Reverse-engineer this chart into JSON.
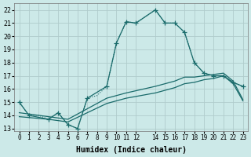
{
  "xlabel": "Humidex (Indice chaleur)",
  "background_color": "#cce9e8",
  "grid_color": "#b0cccc",
  "line_color": "#1a6b6b",
  "xlim": [
    -0.5,
    23.5
  ],
  "ylim": [
    12.8,
    22.5
  ],
  "xticks": [
    0,
    1,
    2,
    3,
    4,
    5,
    6,
    7,
    8,
    9,
    10,
    11,
    12,
    14,
    15,
    16,
    17,
    18,
    19,
    20,
    21,
    22,
    23
  ],
  "yticks": [
    13,
    14,
    15,
    16,
    17,
    18,
    19,
    20,
    21,
    22
  ],
  "line_dotted_x": [
    0,
    1,
    2,
    3,
    4,
    5,
    6,
    7,
    8,
    9,
    10,
    11,
    12,
    14,
    15,
    16,
    17,
    18,
    19,
    20,
    21,
    22,
    23
  ],
  "line_dotted_y": [
    15,
    14,
    14,
    13.7,
    14.2,
    13.3,
    13.0,
    15.3,
    15.5,
    16.2,
    19.5,
    21.1,
    21.0,
    22.0,
    21.0,
    21.0,
    20.3,
    18.0,
    17.2,
    17.0,
    17.0,
    16.5,
    16.2
  ],
  "line_solid_marker_x": [
    0,
    1,
    3,
    4,
    5,
    6,
    7,
    9,
    10,
    11,
    12,
    14,
    15,
    16,
    17,
    18,
    19,
    20,
    21,
    22,
    23
  ],
  "line_solid_marker_y": [
    15,
    14,
    13.7,
    14.2,
    13.3,
    13.0,
    15.3,
    16.2,
    19.5,
    21.1,
    21.0,
    22.0,
    21.0,
    21.0,
    20.3,
    18.0,
    17.2,
    17.0,
    17.0,
    16.5,
    16.2
  ],
  "line_upper_x": [
    0,
    3,
    5,
    7,
    9,
    11,
    14,
    16,
    17,
    18,
    19,
    20,
    21,
    22,
    23
  ],
  "line_upper_y": [
    14.2,
    13.9,
    13.7,
    14.5,
    15.3,
    15.7,
    16.2,
    16.6,
    16.9,
    16.9,
    17.0,
    17.1,
    17.2,
    16.6,
    15.2
  ],
  "line_lower_x": [
    0,
    3,
    5,
    7,
    9,
    11,
    14,
    16,
    17,
    18,
    19,
    20,
    21,
    22,
    23
  ],
  "line_lower_y": [
    13.9,
    13.7,
    13.5,
    14.2,
    14.9,
    15.3,
    15.7,
    16.1,
    16.4,
    16.5,
    16.7,
    16.8,
    17.0,
    16.4,
    15.1
  ]
}
